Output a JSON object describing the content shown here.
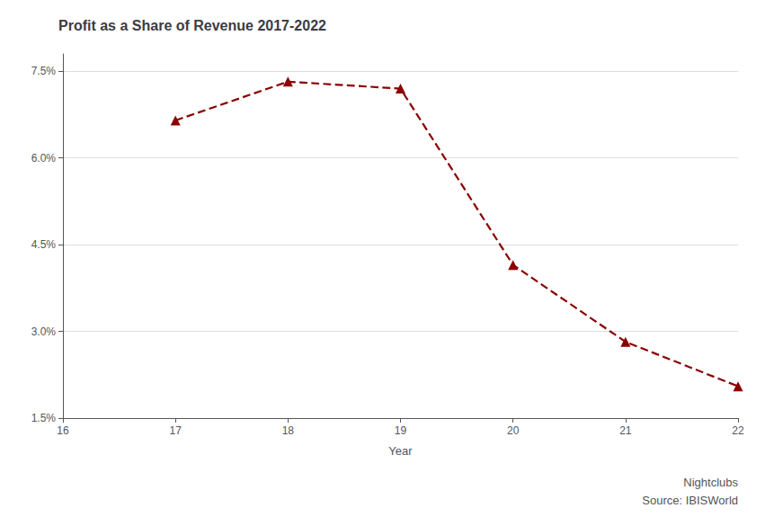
{
  "chart_data": {
    "type": "line",
    "title": "Profit as a Share of Revenue 2017-2022",
    "xlabel": "Year",
    "x": [
      17,
      18,
      19,
      20,
      21,
      22
    ],
    "values": [
      6.65,
      7.32,
      7.2,
      4.15,
      2.82,
      2.05
    ],
    "color": "#8B0000",
    "marker": "triangle",
    "line_style": "dashed",
    "xlim": [
      16,
      22
    ],
    "xticks": [
      16,
      17,
      18,
      19,
      20,
      21,
      22
    ],
    "ylim": [
      1.5,
      7.8
    ],
    "yticks": [
      {
        "value": 1.5,
        "label": "1.5%"
      },
      {
        "value": 3.0,
        "label": "3.0%"
      },
      {
        "value": 4.5,
        "label": "4.5%"
      },
      {
        "value": 6.0,
        "label": "6.0%"
      },
      {
        "value": 7.5,
        "label": "7.5%"
      }
    ],
    "grid": true,
    "annotations": [
      "Nightclubs",
      "Source: IBISWorld"
    ]
  }
}
